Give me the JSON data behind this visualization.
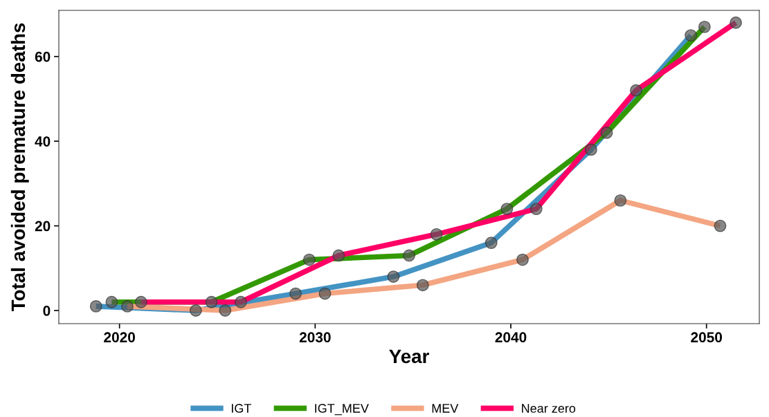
{
  "chart_data": {
    "type": "line",
    "xlabel": "Year",
    "ylabel": "Total avoided premature deaths",
    "xlim": [
      2016.9,
      2052.7
    ],
    "xticks": [
      2020,
      2030,
      2040,
      2050
    ],
    "ylim": [
      -3.1,
      70.9
    ],
    "yticks": [
      0,
      20,
      40,
      60
    ],
    "grid": false,
    "legend": "bottom",
    "marker": "circle",
    "line_style": "solid",
    "series": [
      {
        "name": "IGT",
        "color": "#4393c3",
        "x": [
          2018.8,
          2023.9,
          2029.0,
          2034.0,
          2039.0,
          2044.1,
          2049.2
        ],
        "values": [
          1,
          0,
          4,
          8,
          16,
          38,
          65
        ]
      },
      {
        "name": "IGT_MEV",
        "color": "#339900",
        "x": [
          2019.6,
          2024.7,
          2029.7,
          2034.8,
          2039.8,
          2044.9,
          2049.9
        ],
        "values": [
          2,
          2,
          12,
          13,
          24,
          42,
          67
        ]
      },
      {
        "name": "MEV",
        "color": "#f4a582",
        "x": [
          2020.4,
          2025.4,
          2030.5,
          2035.5,
          2040.6,
          2045.6,
          2050.7
        ],
        "values": [
          1,
          0,
          4,
          6,
          12,
          26,
          20
        ]
      },
      {
        "name": "Near zero",
        "color": "#ff0066",
        "x": [
          2021.1,
          2026.2,
          2031.2,
          2036.2,
          2041.3,
          2046.4,
          2051.5
        ],
        "values": [
          2,
          2,
          13,
          18,
          24,
          52,
          68
        ]
      }
    ]
  }
}
